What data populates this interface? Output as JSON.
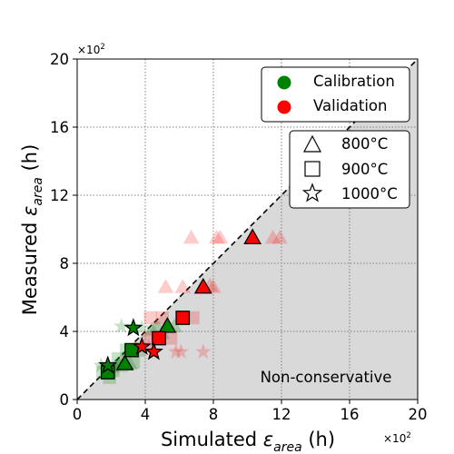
{
  "chart_data": {
    "type": "scatter",
    "title": "",
    "xlabel": "Simulated",
    "ylabel": "Measured",
    "label_symbol": "ε",
    "label_subscript": "area",
    "label_unit": "(h)",
    "x_multiplier": "×10",
    "x_multiplier_exp": "2",
    "y_multiplier": "×10",
    "y_multiplier_exp": "2",
    "xlim": [
      0,
      20
    ],
    "ylim": [
      0,
      20
    ],
    "xticks": [
      "0",
      "4",
      "8",
      "12",
      "16",
      "20"
    ],
    "yticks": [
      "0",
      "4",
      "8",
      "12",
      "16",
      "20"
    ],
    "grid": true,
    "diagonal": "y = x dashed",
    "region_label": "Non-conservative",
    "colors": {
      "calibration": "#008000",
      "validation": "#ff0000",
      "region": "#d9d9d9"
    },
    "legend_groups": [
      {
        "label": "Calibration",
        "marker": "circle",
        "color": "#008000"
      },
      {
        "label": "Validation",
        "marker": "circle",
        "color": "#ff0000"
      }
    ],
    "legend_temps": [
      {
        "label": "800°C",
        "marker": "triangle"
      },
      {
        "label": "900°C",
        "marker": "square"
      },
      {
        "label": "1000°C",
        "marker": "star"
      }
    ],
    "series": [
      {
        "name": "Calibration",
        "points": [
          {
            "x": 1.8,
            "y": 1.6,
            "marker": "square"
          },
          {
            "x": 3.2,
            "y": 2.9,
            "marker": "square"
          },
          {
            "x": 2.8,
            "y": 2.1,
            "marker": "triangle"
          },
          {
            "x": 5.3,
            "y": 4.3,
            "marker": "triangle"
          },
          {
            "x": 1.8,
            "y": 2.0,
            "marker": "star"
          },
          {
            "x": 3.3,
            "y": 4.2,
            "marker": "star"
          }
        ],
        "scatter": [
          {
            "x": 1.5,
            "y": 1.6,
            "marker": "square"
          },
          {
            "x": 2.1,
            "y": 1.7,
            "marker": "square"
          },
          {
            "x": 2.6,
            "y": 2.0,
            "marker": "square"
          },
          {
            "x": 2.9,
            "y": 2.9,
            "marker": "square"
          },
          {
            "x": 3.6,
            "y": 2.9,
            "marker": "square"
          },
          {
            "x": 2.4,
            "y": 2.4,
            "marker": "square"
          },
          {
            "x": 3.3,
            "y": 2.2,
            "marker": "square"
          },
          {
            "x": 1.9,
            "y": 1.3,
            "marker": "square"
          },
          {
            "x": 2.4,
            "y": 2.1,
            "marker": "triangle"
          },
          {
            "x": 3.1,
            "y": 2.1,
            "marker": "triangle"
          },
          {
            "x": 4.7,
            "y": 4.3,
            "marker": "triangle"
          },
          {
            "x": 5.7,
            "y": 4.3,
            "marker": "triangle"
          },
          {
            "x": 4.4,
            "y": 4.1,
            "marker": "triangle"
          },
          {
            "x": 5.0,
            "y": 3.9,
            "marker": "triangle"
          },
          {
            "x": 2.6,
            "y": 4.3,
            "marker": "star"
          },
          {
            "x": 3.8,
            "y": 4.2,
            "marker": "star"
          },
          {
            "x": 1.4,
            "y": 2.0,
            "marker": "star"
          },
          {
            "x": 2.2,
            "y": 1.9,
            "marker": "star"
          }
        ]
      },
      {
        "name": "Validation",
        "points": [
          {
            "x": 10.3,
            "y": 9.5,
            "marker": "triangle"
          },
          {
            "x": 7.4,
            "y": 6.6,
            "marker": "triangle"
          },
          {
            "x": 6.2,
            "y": 4.8,
            "marker": "square"
          },
          {
            "x": 4.8,
            "y": 3.6,
            "marker": "square"
          },
          {
            "x": 3.8,
            "y": 3.1,
            "marker": "star"
          },
          {
            "x": 4.5,
            "y": 2.8,
            "marker": "star"
          }
        ],
        "scatter": [
          {
            "x": 6.7,
            "y": 9.5,
            "marker": "triangle"
          },
          {
            "x": 8.2,
            "y": 9.5,
            "marker": "triangle"
          },
          {
            "x": 8.4,
            "y": 9.5,
            "marker": "triangle"
          },
          {
            "x": 11.5,
            "y": 9.5,
            "marker": "triangle"
          },
          {
            "x": 11.9,
            "y": 9.5,
            "marker": "triangle"
          },
          {
            "x": 5.2,
            "y": 6.6,
            "marker": "triangle"
          },
          {
            "x": 6.2,
            "y": 6.6,
            "marker": "triangle"
          },
          {
            "x": 8.0,
            "y": 6.6,
            "marker": "triangle"
          },
          {
            "x": 7.8,
            "y": 6.7,
            "marker": "triangle"
          },
          {
            "x": 4.3,
            "y": 4.8,
            "marker": "square"
          },
          {
            "x": 5.0,
            "y": 4.8,
            "marker": "square"
          },
          {
            "x": 6.8,
            "y": 4.8,
            "marker": "square"
          },
          {
            "x": 4.2,
            "y": 3.6,
            "marker": "square"
          },
          {
            "x": 5.5,
            "y": 3.6,
            "marker": "square"
          },
          {
            "x": 5.8,
            "y": 2.8,
            "marker": "star"
          },
          {
            "x": 6.1,
            "y": 2.8,
            "marker": "star"
          },
          {
            "x": 7.4,
            "y": 2.8,
            "marker": "star"
          },
          {
            "x": 3.4,
            "y": 3.1,
            "marker": "star"
          },
          {
            "x": 4.2,
            "y": 3.1,
            "marker": "star"
          }
        ]
      }
    ]
  }
}
